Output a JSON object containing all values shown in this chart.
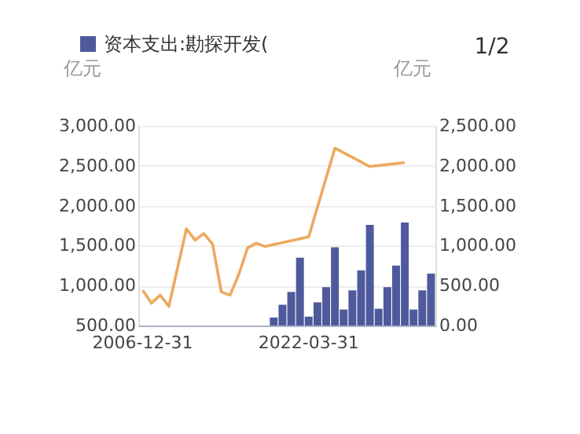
{
  "chart_data": {
    "type": "bar",
    "categories": [
      "2006-12-31",
      null,
      null,
      null,
      null,
      null,
      null,
      null,
      null,
      null,
      null,
      null,
      null,
      null,
      null,
      null,
      null,
      null,
      null,
      "2022-03-31",
      null,
      null,
      null,
      null,
      null,
      null,
      null,
      null,
      null,
      null,
      null,
      null,
      null,
      null
    ],
    "series": [
      {
        "name": "资本支出:勘探开发(",
        "axis": "y2",
        "color": "#4e5a9b",
        "values": [
          null,
          null,
          null,
          null,
          null,
          null,
          null,
          null,
          null,
          null,
          null,
          null,
          null,
          null,
          null,
          100,
          260,
          420,
          850,
          110,
          290,
          480,
          980,
          200,
          440,
          690,
          1260,
          210,
          480,
          750,
          1290,
          200,
          440,
          650
        ]
      },
      {
        "type": "line",
        "axis": "y",
        "color": "#eda95f",
        "values": [
          940,
          780,
          880,
          740,
          null,
          1710,
          1570,
          1650,
          1520,
          920,
          880,
          1140,
          1470,
          1530,
          1490,
          null,
          null,
          null,
          null,
          1610,
          null,
          null,
          2720,
          null,
          null,
          null,
          2490,
          null,
          null,
          null,
          2540,
          null,
          null,
          null
        ]
      }
    ],
    "ylabel": "亿元",
    "y2label": "亿元",
    "ylim": [
      500,
      3000
    ],
    "yticks": [
      {
        "value": 500,
        "label": "500.00"
      },
      {
        "value": 1000,
        "label": "1,000.00"
      },
      {
        "value": 1500,
        "label": "1,500.00"
      },
      {
        "value": 2000,
        "label": "2,000.00"
      },
      {
        "value": 2500,
        "label": "2,500.00"
      },
      {
        "value": 3000,
        "label": "3,000.00"
      }
    ],
    "y2lim": [
      0,
      2500
    ],
    "y2ticks": [
      {
        "value": 0,
        "label": "0.00"
      },
      {
        "value": 500,
        "label": "500.00"
      },
      {
        "value": 1000,
        "label": "1,000.00"
      },
      {
        "value": 1500,
        "label": "1,500.00"
      },
      {
        "value": 2000,
        "label": "2,000.00"
      },
      {
        "value": 2500,
        "label": "2,500.00"
      }
    ],
    "grid": "y",
    "legend": "top left",
    "annotations": [
      "1/2"
    ]
  }
}
